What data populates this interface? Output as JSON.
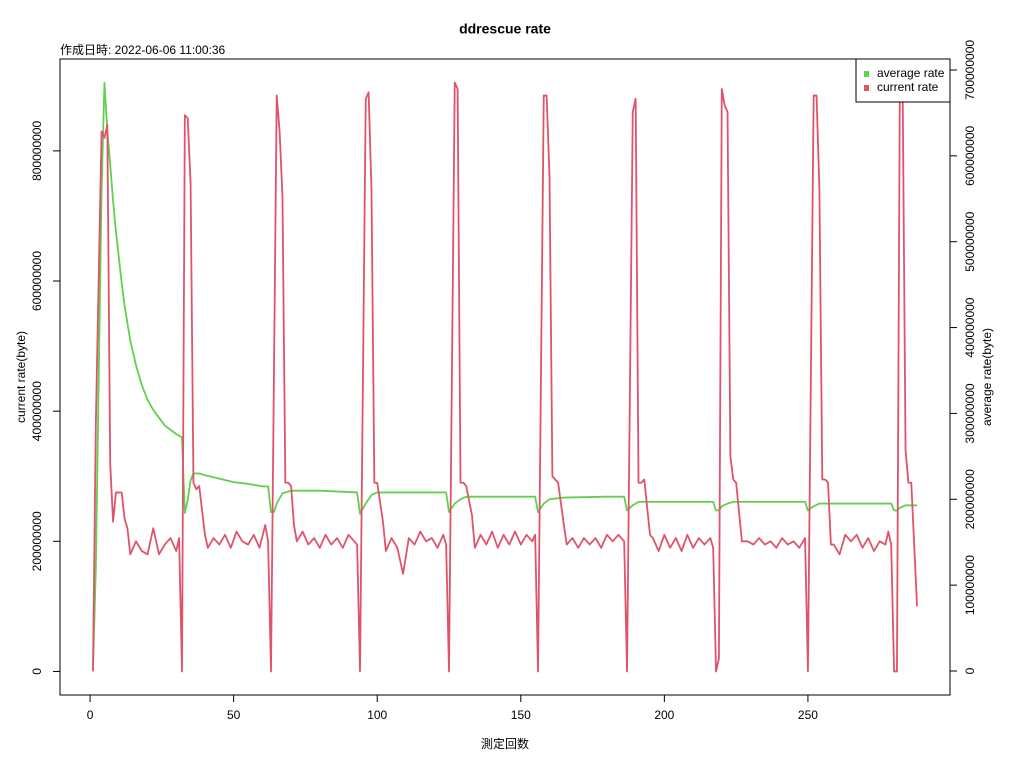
{
  "chart_data": {
    "type": "line",
    "title": "ddrescue rate",
    "subtitle": "作成日時: 2022-06-06 11:00:36",
    "xlabel": "測定回数",
    "ylabel": "current rate(byte)",
    "y2label": "average rate(byte)",
    "xlim": [
      -10.48,
      299.48
    ],
    "xticks": [
      0,
      50,
      100,
      150,
      200,
      250
    ],
    "ylim": [
      -36200000,
      941200000
    ],
    "yticks": [
      0,
      200000000,
      400000000,
      600000000,
      800000000
    ],
    "y2lim": [
      -27950000,
      712800000
    ],
    "y2ticks": [
      0,
      100000000,
      200000000,
      300000000,
      400000000,
      500000000,
      600000000,
      700000000
    ],
    "grid": false,
    "legend": "top-right",
    "series": [
      {
        "name": "average rate",
        "color": "#61D04F",
        "axis": "y2",
        "x": [
          1,
          2,
          4,
          5,
          6,
          7,
          8,
          9,
          11,
          12,
          13,
          14,
          16,
          18,
          20,
          22,
          24,
          26,
          28,
          30,
          31,
          32,
          33,
          34,
          35,
          36,
          38,
          40,
          45,
          50,
          55,
          60,
          62,
          63,
          64,
          65,
          67,
          70,
          80,
          93,
          94,
          96,
          98,
          100,
          110,
          124,
          125,
          127,
          129,
          131,
          140,
          155,
          156,
          158,
          160,
          165,
          180,
          186,
          187,
          189,
          191,
          195,
          217,
          218,
          219,
          220,
          222,
          224,
          230,
          249,
          250,
          252,
          254,
          258,
          279,
          280,
          281,
          282,
          284,
          288
        ],
        "values": [
          0,
          120000000,
          560000000,
          685000000,
          630000000,
          590000000,
          548000000,
          512000000,
          452000000,
          426000000,
          405000000,
          385000000,
          356000000,
          333000000,
          316000000,
          304000000,
          295000000,
          286000000,
          281000000,
          276000000,
          274000000,
          272000000,
          184000000,
          199000000,
          222000000,
          230000000,
          230000000,
          228000000,
          224000000,
          220000000,
          218000000,
          215000000,
          215000000,
          185000000,
          185000000,
          195000000,
          207000000,
          210000000,
          210000000,
          208000000,
          183000000,
          195000000,
          205000000,
          208000000,
          208000000,
          208000000,
          185000000,
          195000000,
          200000000,
          203000000,
          203000000,
          203000000,
          185000000,
          195000000,
          200000000,
          202000000,
          203000000,
          203000000,
          187000000,
          193000000,
          197000000,
          197000000,
          197000000,
          187000000,
          187000000,
          192000000,
          195000000,
          197000000,
          197000000,
          197000000,
          187000000,
          192000000,
          195000000,
          195000000,
          195000000,
          187000000,
          187000000,
          190000000,
          193000000,
          193000000
        ]
      },
      {
        "name": "current rate",
        "color": "#DF536B",
        "axis": "y",
        "x": [
          1,
          2,
          4,
          5,
          6,
          7,
          8,
          9,
          11,
          12,
          13,
          14,
          16,
          18,
          20,
          22,
          24,
          26,
          28,
          30,
          31,
          32,
          33,
          34,
          35,
          36,
          37,
          38,
          40,
          41,
          43,
          45,
          47,
          49,
          51,
          53,
          55,
          57,
          59,
          61,
          62,
          63,
          65,
          66,
          67,
          68,
          69,
          70,
          71,
          72,
          74,
          76,
          78,
          80,
          82,
          84,
          86,
          88,
          90,
          92,
          93,
          94,
          96,
          97,
          98,
          99,
          100,
          102,
          103,
          105,
          107,
          109,
          111,
          113,
          115,
          117,
          119,
          121,
          123,
          124,
          125,
          127,
          128,
          129,
          130,
          131,
          133,
          134,
          136,
          138,
          140,
          142,
          144,
          146,
          148,
          150,
          152,
          154,
          155,
          156,
          158,
          159,
          160,
          161,
          162,
          163,
          165,
          166,
          168,
          170,
          172,
          174,
          176,
          178,
          180,
          182,
          184,
          186,
          187,
          189,
          190,
          191,
          192,
          193,
          195,
          196,
          198,
          200,
          202,
          204,
          206,
          208,
          210,
          212,
          214,
          216,
          217,
          218,
          219,
          220,
          221,
          222,
          223,
          224,
          225,
          227,
          229,
          231,
          233,
          235,
          237,
          239,
          241,
          243,
          245,
          247,
          249,
          250,
          252,
          253,
          254,
          255,
          256,
          257,
          258,
          259,
          261,
          263,
          265,
          267,
          269,
          271,
          273,
          275,
          277,
          278,
          279,
          280,
          281,
          282,
          283,
          284,
          285,
          286,
          288
        ],
        "values": [
          0,
          380000000,
          830000000,
          820000000,
          840000000,
          320000000,
          230000000,
          275000000,
          275000000,
          235000000,
          220000000,
          180000000,
          200000000,
          185000000,
          180000000,
          220000000,
          180000000,
          195000000,
          205000000,
          185000000,
          205000000,
          0,
          855000000,
          850000000,
          750000000,
          290000000,
          280000000,
          285000000,
          210000000,
          190000000,
          205000000,
          195000000,
          210000000,
          190000000,
          215000000,
          200000000,
          195000000,
          210000000,
          190000000,
          225000000,
          200000000,
          0,
          885000000,
          830000000,
          730000000,
          290000000,
          290000000,
          285000000,
          225000000,
          200000000,
          215000000,
          195000000,
          205000000,
          190000000,
          210000000,
          195000000,
          205000000,
          190000000,
          210000000,
          200000000,
          195000000,
          0,
          880000000,
          890000000,
          740000000,
          290000000,
          290000000,
          230000000,
          185000000,
          205000000,
          190000000,
          150000000,
          205000000,
          195000000,
          215000000,
          200000000,
          205000000,
          190000000,
          210000000,
          195000000,
          0,
          905000000,
          895000000,
          290000000,
          290000000,
          285000000,
          240000000,
          190000000,
          210000000,
          195000000,
          215000000,
          190000000,
          210000000,
          195000000,
          215000000,
          195000000,
          210000000,
          200000000,
          210000000,
          0,
          885000000,
          885000000,
          760000000,
          300000000,
          295000000,
          290000000,
          225000000,
          195000000,
          205000000,
          190000000,
          205000000,
          195000000,
          205000000,
          190000000,
          210000000,
          200000000,
          210000000,
          200000000,
          0,
          860000000,
          880000000,
          290000000,
          290000000,
          295000000,
          210000000,
          205000000,
          185000000,
          210000000,
          190000000,
          205000000,
          185000000,
          210000000,
          190000000,
          205000000,
          195000000,
          205000000,
          190000000,
          0,
          20000000,
          895000000,
          870000000,
          860000000,
          330000000,
          295000000,
          290000000,
          200000000,
          200000000,
          195000000,
          205000000,
          195000000,
          200000000,
          190000000,
          205000000,
          195000000,
          200000000,
          190000000,
          205000000,
          0,
          885000000,
          885000000,
          740000000,
          295000000,
          295000000,
          290000000,
          195000000,
          195000000,
          180000000,
          210000000,
          200000000,
          210000000,
          190000000,
          205000000,
          185000000,
          200000000,
          195000000,
          215000000,
          195000000,
          0,
          0,
          890000000,
          890000000,
          340000000,
          290000000,
          290000000,
          100000000
        ]
      }
    ]
  }
}
